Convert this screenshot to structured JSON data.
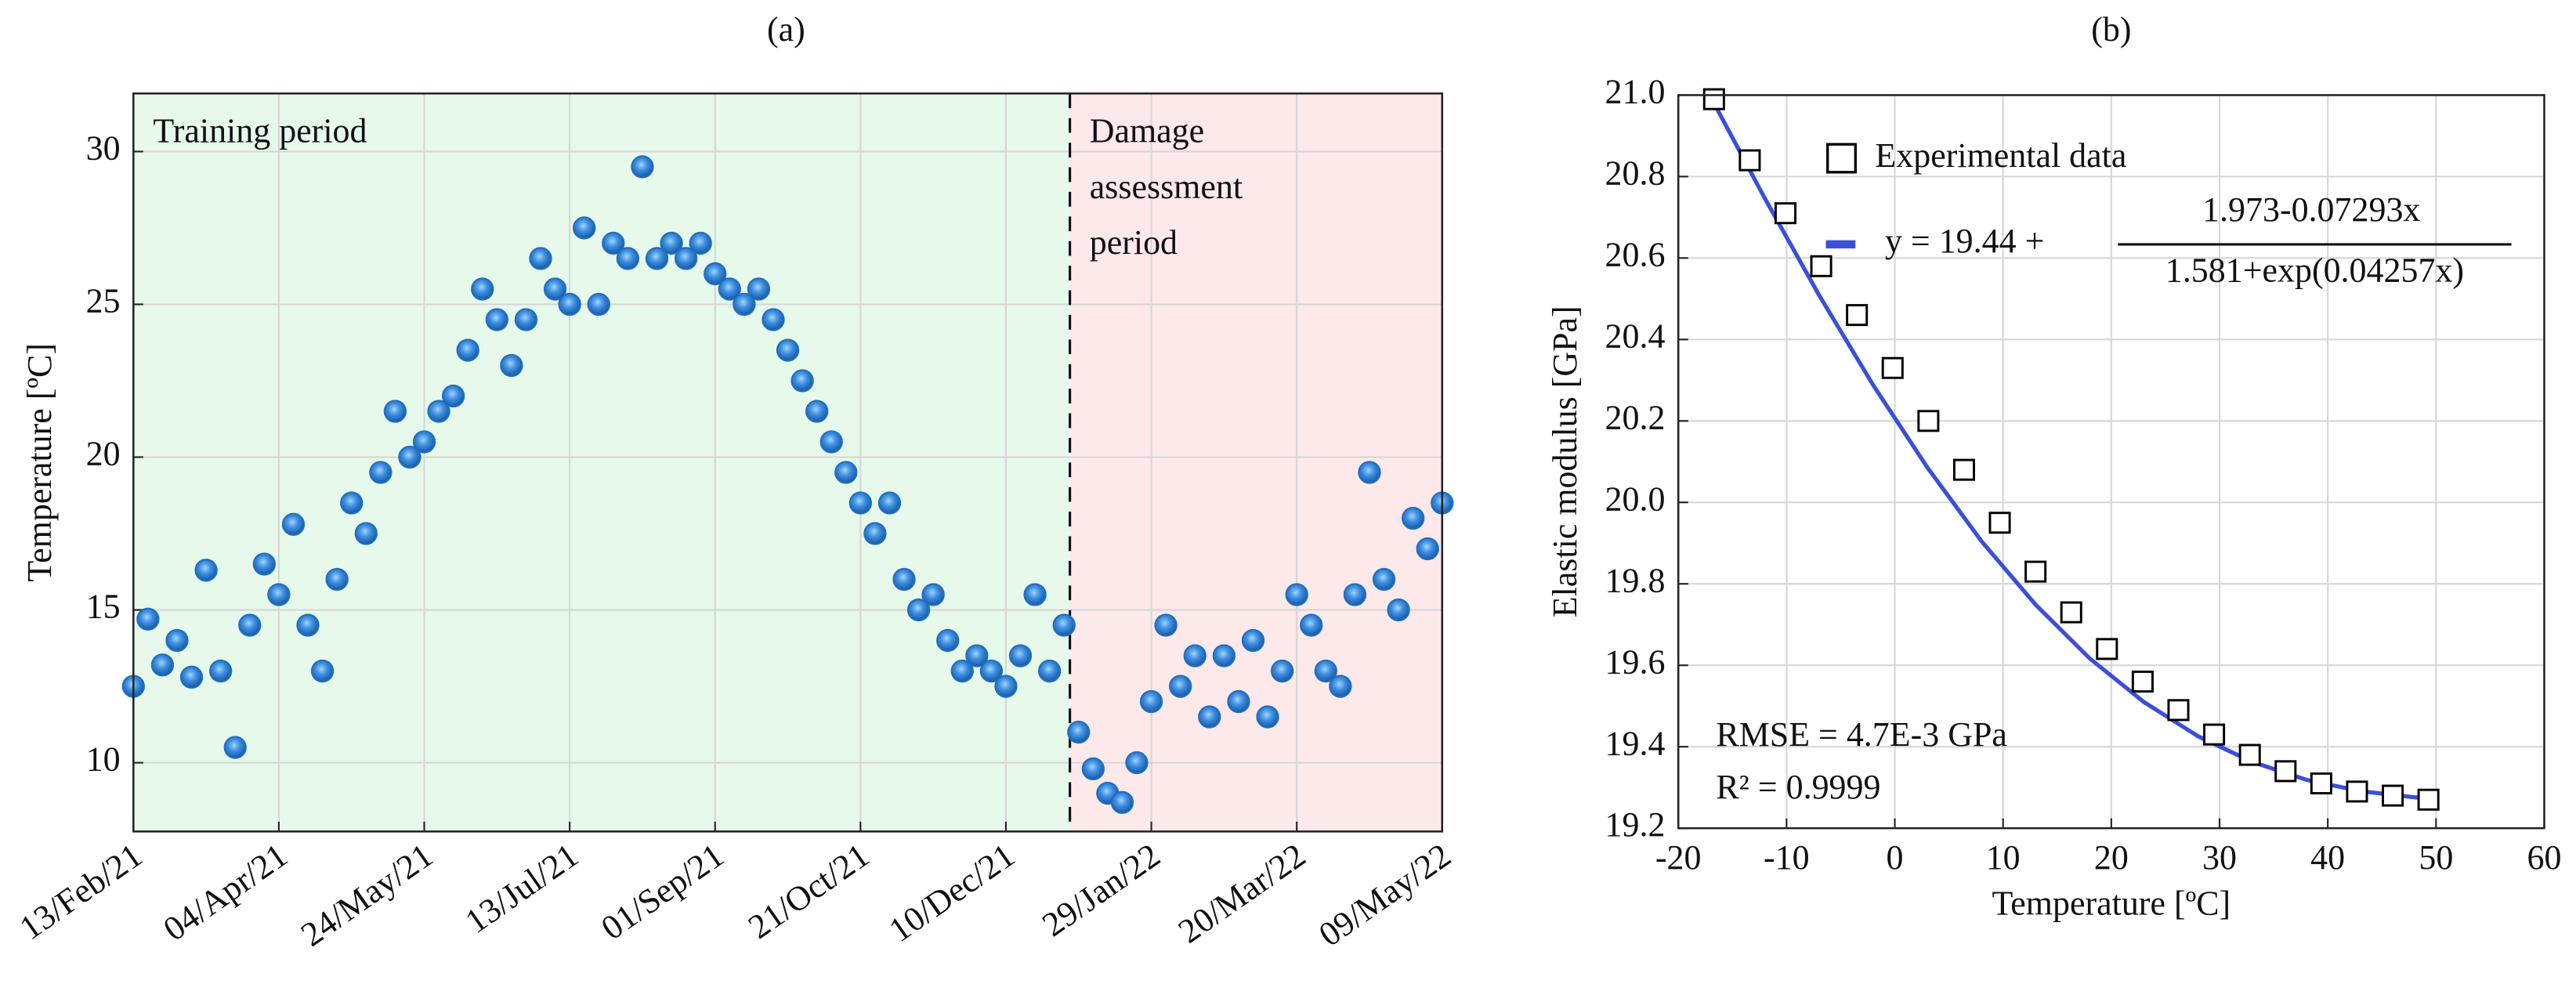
{
  "chart_data": [
    {
      "type": "scatter",
      "title": "(a)",
      "ylabel": "Temperature [ºC]",
      "xlim": [
        "2021-02-13",
        "2022-05-09"
      ],
      "xticks": [
        {
          "value": "2021-02-13",
          "label": "13/Feb/21"
        },
        {
          "value": "2021-04-04",
          "label": "04/Apr/21"
        },
        {
          "value": "2021-05-24",
          "label": "24/May/21"
        },
        {
          "value": "2021-07-13",
          "label": "13/Jul/21"
        },
        {
          "value": "2021-09-01",
          "label": "01/Sep/21"
        },
        {
          "value": "2021-10-21",
          "label": "21/Oct/21"
        },
        {
          "value": "2021-12-10",
          "label": "10/Dec/21"
        },
        {
          "value": "2022-01-29",
          "label": "29/Jan/22"
        },
        {
          "value": "2022-03-20",
          "label": "20/Mar/22"
        },
        {
          "value": "2022-05-09",
          "label": "09/May/22"
        }
      ],
      "ylim": [
        7.75,
        31.9
      ],
      "yticks": [
        10,
        15,
        20,
        25,
        30
      ],
      "grid": true,
      "color": "#1f6fbf",
      "periods": [
        {
          "label": [
            "Training period"
          ],
          "start": "2021-02-13",
          "end": "2022-01-01",
          "color": "#e6f9ea",
          "text_color": "#2ca05a"
        },
        {
          "label": [
            "Damage",
            "assessment",
            "period"
          ],
          "start": "2022-01-01",
          "end": "2022-05-09",
          "color": "#fde8ea",
          "text_color": "#c0202e"
        }
      ],
      "x": [
        "2021-02-13",
        "2021-02-18",
        "2021-02-23",
        "2021-02-28",
        "2021-03-05",
        "2021-03-10",
        "2021-03-15",
        "2021-03-20",
        "2021-03-25",
        "2021-03-30",
        "2021-04-04",
        "2021-04-09",
        "2021-04-14",
        "2021-04-19",
        "2021-04-24",
        "2021-04-29",
        "2021-05-04",
        "2021-05-09",
        "2021-05-14",
        "2021-05-19",
        "2021-05-24",
        "2021-05-29",
        "2021-06-03",
        "2021-06-08",
        "2021-06-13",
        "2021-06-18",
        "2021-06-23",
        "2021-06-28",
        "2021-07-03",
        "2021-07-08",
        "2021-07-13",
        "2021-07-18",
        "2021-07-23",
        "2021-07-28",
        "2021-08-02",
        "2021-08-07",
        "2021-08-12",
        "2021-08-17",
        "2021-08-22",
        "2021-08-27",
        "2021-09-01",
        "2021-09-06",
        "2021-09-11",
        "2021-09-16",
        "2021-09-21",
        "2021-09-26",
        "2021-10-01",
        "2021-10-06",
        "2021-10-11",
        "2021-10-16",
        "2021-10-21",
        "2021-10-26",
        "2021-10-31",
        "2021-11-05",
        "2021-11-10",
        "2021-11-15",
        "2021-11-20",
        "2021-11-25",
        "2021-11-30",
        "2021-12-05",
        "2021-12-10",
        "2021-12-15",
        "2021-12-20",
        "2021-12-25",
        "2021-12-30",
        "2022-01-04",
        "2022-01-09",
        "2022-01-14",
        "2022-01-19",
        "2022-01-24",
        "2022-01-29",
        "2022-02-03",
        "2022-02-08",
        "2022-02-13",
        "2022-02-18",
        "2022-02-23",
        "2022-02-28",
        "2022-03-05",
        "2022-03-10",
        "2022-03-15",
        "2022-03-20",
        "2022-03-25",
        "2022-03-30",
        "2022-04-04",
        "2022-04-09",
        "2022-04-14",
        "2022-04-19",
        "2022-04-24",
        "2022-04-29",
        "2022-05-04",
        "2022-05-09"
      ],
      "values": [
        12.5,
        14.7,
        13.2,
        14.0,
        12.8,
        16.3,
        13.0,
        10.5,
        14.5,
        16.5,
        15.5,
        17.8,
        14.5,
        13.0,
        16.0,
        18.5,
        17.5,
        19.5,
        21.5,
        20.0,
        20.5,
        21.5,
        22.0,
        23.5,
        25.5,
        24.5,
        23.0,
        24.5,
        26.5,
        25.5,
        25.0,
        27.5,
        25.0,
        27.0,
        26.5,
        29.5,
        26.5,
        27.0,
        26.5,
        27.0,
        26.0,
        25.5,
        25.0,
        25.5,
        24.5,
        23.5,
        22.5,
        21.5,
        20.5,
        19.5,
        18.5,
        17.5,
        18.5,
        16.0,
        15.0,
        15.5,
        14.0,
        13.0,
        13.5,
        13.0,
        12.5,
        13.5,
        15.5,
        13.0,
        14.5,
        11.0,
        9.8,
        9.0,
        8.7,
        10.0,
        12.0,
        14.5,
        12.5,
        13.5,
        11.5,
        13.5,
        12.0,
        14.0,
        11.5,
        13.0,
        15.5,
        14.5,
        13.0,
        12.5,
        15.5,
        19.5,
        16.0,
        15.0,
        18.0,
        17.0,
        18.5
      ]
    },
    {
      "type": "line",
      "title": "(b)",
      "xlabel": "Temperature [ºC]",
      "ylabel": "Elastic modulus [GPa]",
      "xlim": [
        -20,
        60
      ],
      "xticks": [
        -20,
        -10,
        0,
        10,
        20,
        30,
        40,
        50,
        60
      ],
      "ylim": [
        19.2,
        21.0
      ],
      "yticks": [
        19.2,
        19.4,
        19.6,
        19.8,
        {
          "value": 20.0,
          "label": "20.0"
        },
        20.2,
        20.4,
        20.6,
        20.8,
        {
          "value": 21.0,
          "label": "21.0"
        }
      ],
      "grid": true,
      "series": [
        {
          "name": "Experimental data",
          "color": "#000000",
          "x": [
            -16.7,
            -13.4,
            -10.1,
            -6.8,
            -3.5,
            -0.2,
            3.1,
            6.4,
            9.7,
            13.0,
            16.3,
            19.6,
            22.9,
            26.2,
            29.5,
            32.8,
            36.1,
            39.4,
            42.7,
            46.0,
            49.3
          ],
          "values": [
            20.99,
            20.84,
            20.71,
            20.58,
            20.46,
            20.33,
            20.2,
            20.08,
            19.95,
            19.83,
            19.73,
            19.64,
            19.56,
            19.49,
            19.43,
            19.38,
            19.34,
            19.31,
            19.29,
            19.28,
            19.27
          ]
        },
        {
          "name": {
            "lhs": "y = 19.44 +",
            "numerator": "1.973-0.07293x",
            "denominator": "1.581+exp(0.04257x)"
          },
          "color": "#3b4fd8",
          "x": [
            -17,
            -12,
            -7,
            -2,
            3,
            8,
            13,
            18,
            23,
            28,
            33,
            38,
            43,
            48,
            50
          ],
          "values": [
            20.995,
            20.746,
            20.509,
            20.288,
            20.086,
            19.905,
            19.749,
            19.617,
            19.51,
            19.426,
            19.363,
            19.319,
            19.291,
            19.276,
            19.272
          ]
        }
      ],
      "annotations": [
        "RMSE = 4.7E-3 GPa",
        "R² = 0.9999"
      ],
      "annotation_color": "#2a22e0"
    }
  ]
}
